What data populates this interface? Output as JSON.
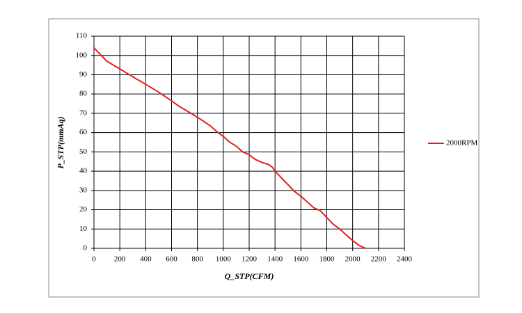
{
  "chart_data": {
    "type": "line",
    "x_label": "Q_STP(CFM)",
    "y_label": "P_STP(mmAq)",
    "x": [
      0,
      100,
      200,
      300,
      400,
      500,
      600,
      650,
      700,
      750,
      800,
      900,
      950,
      1000,
      1050,
      1100,
      1150,
      1200,
      1250,
      1300,
      1350,
      1380,
      1400,
      1500,
      1550,
      1600,
      1650,
      1700,
      1750,
      1800,
      1850,
      1900,
      1950,
      2000,
      2050,
      2100
    ],
    "series": [
      {
        "name": "2000RPM",
        "color": "#e02020",
        "values": [
          104,
          97,
          93,
          89,
          85,
          81,
          76.5,
          74,
          72,
          70,
          68,
          63.5,
          60.5,
          58,
          55,
          53,
          50,
          48.5,
          46,
          44.5,
          43.5,
          42,
          40,
          33,
          29.5,
          27,
          24,
          21,
          19.5,
          16,
          12.5,
          10,
          7,
          4,
          1.5,
          0
        ]
      }
    ],
    "xlim": [
      0,
      2400
    ],
    "xticks": [
      0,
      200,
      400,
      600,
      800,
      1000,
      1200,
      1400,
      1600,
      1800,
      2000,
      2200,
      2400
    ],
    "ylim": [
      0,
      110
    ],
    "yticks": [
      0,
      10,
      20,
      30,
      40,
      50,
      60,
      70,
      80,
      90,
      100,
      110
    ],
    "grid": true,
    "legend": "right"
  }
}
